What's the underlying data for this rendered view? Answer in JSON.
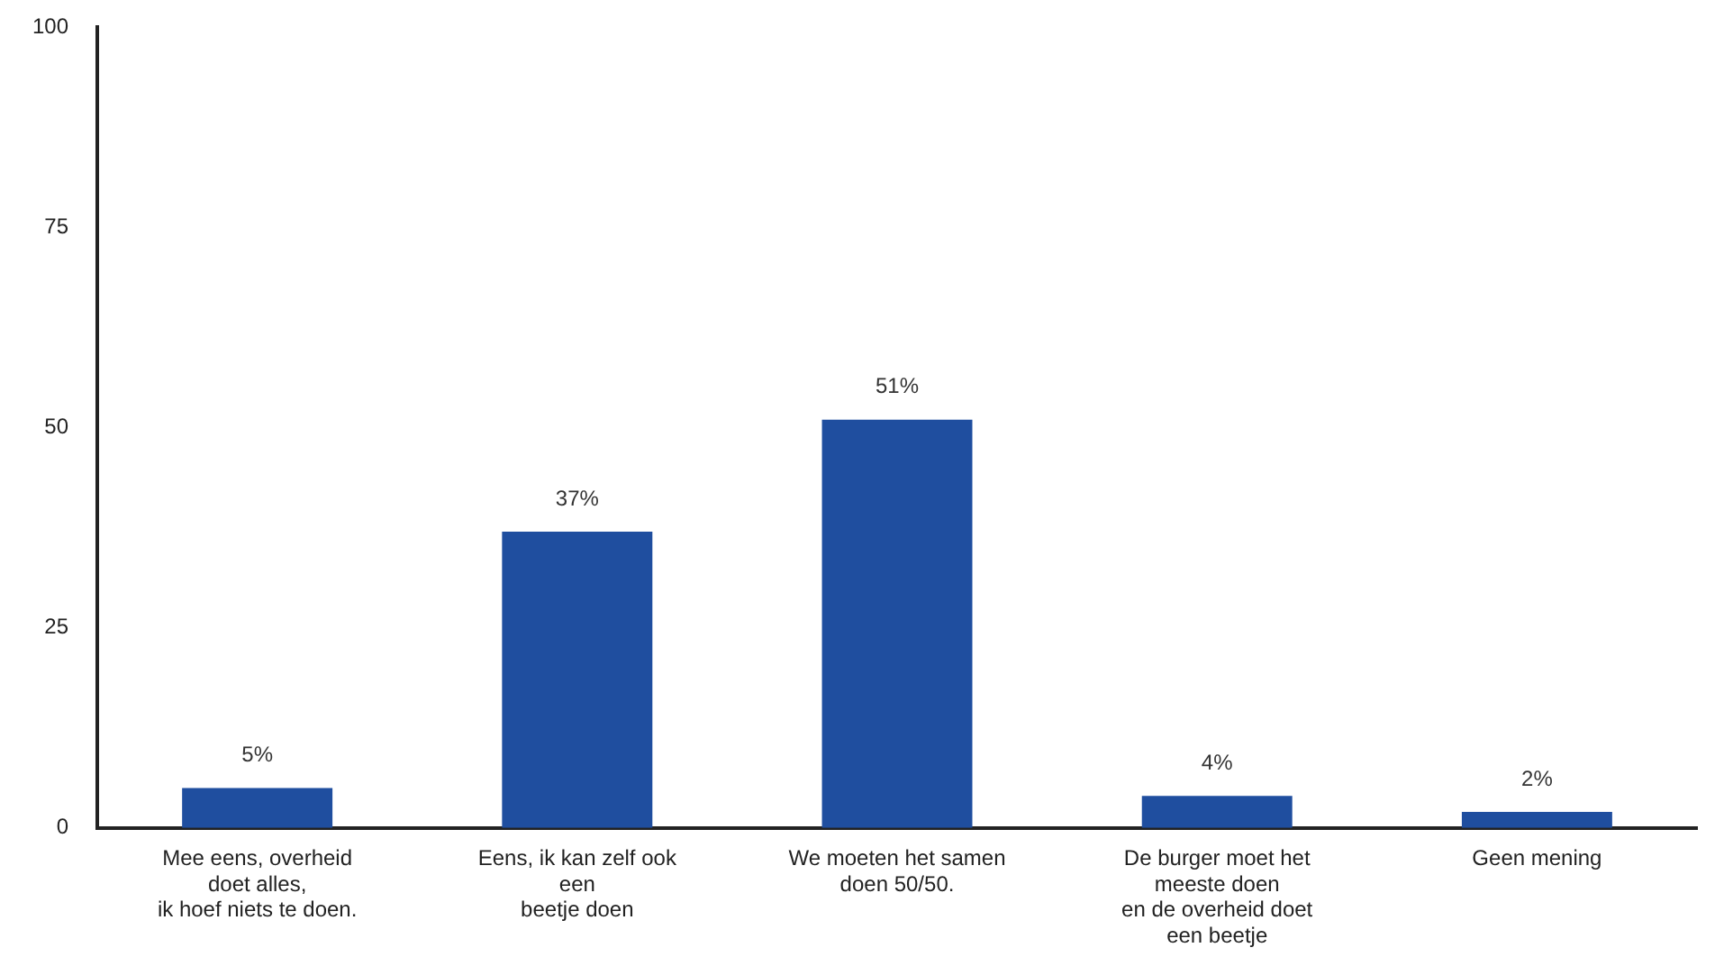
{
  "chart_data": {
    "type": "bar",
    "categories": [
      "Mee eens, overheid\ndoet alles,\nik hoef niets te doen.",
      "Eens, ik kan zelf ook\neen\nbeetje doen",
      "We moeten het samen\ndoen 50/50.",
      "De burger moet het\nmeeste doen\nen de overheid doet\neen beetje",
      "Geen mening"
    ],
    "values": [
      5,
      37,
      51,
      4,
      2
    ],
    "value_labels": [
      "5%",
      "37%",
      "51%",
      "4%",
      "2%"
    ],
    "color": "#1f4e9f",
    "ylim": [
      0,
      100
    ],
    "yticks": [
      0,
      25,
      50,
      75,
      100
    ],
    "grid": false,
    "legend": false
  }
}
